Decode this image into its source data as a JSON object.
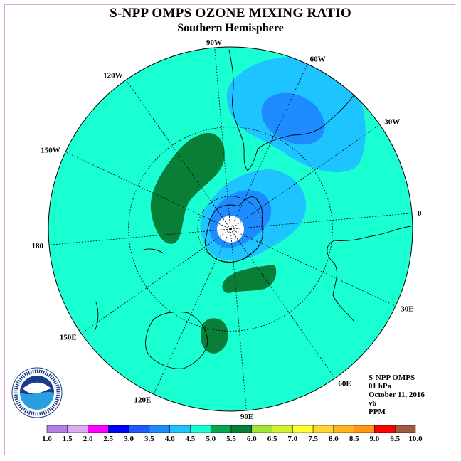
{
  "header": {
    "title": "S-NPP OMPS OZONE MIXING RATIO",
    "subtitle": "Southern Hemisphere"
  },
  "logo": {
    "text": "NOAA",
    "icon": "noaa-seal-icon"
  },
  "info": {
    "instrument": "S-NPP OMPS",
    "level": "01 hPa",
    "date": "October 11, 2016",
    "version": "v6",
    "units": "PPM"
  },
  "map": {
    "projection": "south polar stereographic",
    "longitude_labels": [
      "90W",
      "60W",
      "30W",
      "0",
      "30E",
      "60E",
      "90E",
      "120E",
      "150E",
      "180",
      "150W",
      "120W"
    ],
    "background_color": "#1affd2",
    "fill_colors": {
      "light_blue": "#1ec4ff",
      "blue": "#1e8cff",
      "dark_green": "#087e36",
      "white": "#ffffff"
    }
  },
  "colorbar": {
    "labels": [
      "1.0",
      "1.5",
      "2.0",
      "2.5",
      "3.0",
      "3.5",
      "4.0",
      "4.5",
      "5.0",
      "5.5",
      "6.0",
      "6.5",
      "7.0",
      "7.5",
      "8.0",
      "8.5",
      "9.0",
      "9.5",
      "10.0"
    ],
    "colors": [
      "#b57fe8",
      "#dcaaf0",
      "#ff00ff",
      "#0000ff",
      "#1e5aff",
      "#1e8cff",
      "#1ec4ff",
      "#1affd2",
      "#08a84c",
      "#087e36",
      "#a0e632",
      "#d2f032",
      "#ffff32",
      "#ffd732",
      "#ffb41e",
      "#ff9614",
      "#ff0000",
      "#c83c3c",
      "#a05a3c"
    ]
  }
}
